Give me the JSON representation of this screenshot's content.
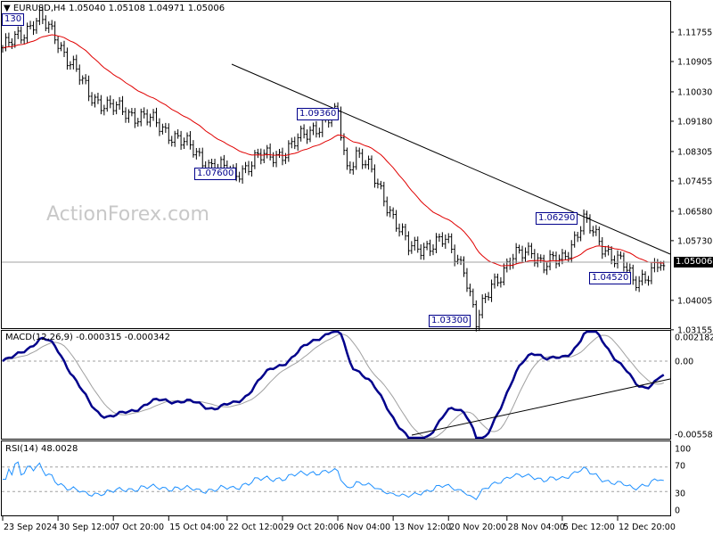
{
  "header": {
    "symbol": "EURUSD,H4",
    "open": "1.05040",
    "high": "1.05108",
    "low": "1.04971",
    "close": "1.05006"
  },
  "watermark": "ActionForex.com",
  "current_price": "1.05006",
  "annotations": {
    "top_left": "130",
    "high1": "1.09360",
    "low1": "1.07600",
    "high2": "1.06290",
    "low2": "1.04520",
    "low3": "1.03300"
  },
  "macd": {
    "label": "MACD(12,26,9) -0.000315 -0.000342",
    "axis": [
      "0.002182",
      "0.00",
      "-0.005584"
    ]
  },
  "rsi": {
    "label": "RSI(14) 48.0028",
    "axis": [
      "100",
      "70",
      "30",
      "0"
    ]
  },
  "colors": {
    "bars": "#000000",
    "ma": "#e00000",
    "macd": "#00008b",
    "signal": "#a0a0a0",
    "rsi": "#1e90ff"
  },
  "chart_data": {
    "type": "line",
    "title": "EURUSD,H4",
    "price_axis": [
      "1.11755",
      "1.10905",
      "1.10030",
      "1.09180",
      "1.08305",
      "1.07455",
      "1.06580",
      "1.05730",
      "1.05006",
      "1.04005",
      "1.03155"
    ],
    "ylim": [
      1.0305,
      1.1265
    ],
    "x_ticks": [
      {
        "bar": 0,
        "label": "23 Sep 2024"
      },
      {
        "bar": 18,
        "label": "30 Sep 12:00"
      },
      {
        "bar": 36,
        "label": "7 Oct 20:00"
      },
      {
        "bar": 54,
        "label": "15 Oct 04:00"
      },
      {
        "bar": 73,
        "label": "22 Oct 12:00"
      },
      {
        "bar": 91,
        "label": "29 Oct 20:00"
      },
      {
        "bar": 109,
        "label": "6 Nov 04:00"
      },
      {
        "bar": 127,
        "label": "13 Nov 12:00"
      },
      {
        "bar": 145,
        "label": "20 Nov 20:00"
      },
      {
        "bar": 164,
        "label": "28 Nov 04:00"
      },
      {
        "bar": 182,
        "label": "5 Dec 12:00"
      },
      {
        "bar": 200,
        "label": "12 Dec 20:00"
      }
    ],
    "price_path": [
      [
        0,
        1.112
      ],
      [
        5,
        1.117
      ],
      [
        12,
        1.121
      ],
      [
        17,
        1.117
      ],
      [
        21,
        1.11
      ],
      [
        28,
        1.1
      ],
      [
        34,
        1.096
      ],
      [
        46,
        1.093
      ],
      [
        57,
        1.087
      ],
      [
        66,
        1.08
      ],
      [
        75,
        1.0765
      ],
      [
        83,
        1.081
      ],
      [
        92,
        1.083
      ],
      [
        101,
        1.09
      ],
      [
        109,
        1.0936
      ],
      [
        112,
        1.078
      ],
      [
        115,
        1.083
      ],
      [
        119,
        1.078
      ],
      [
        124,
        1.07
      ],
      [
        132,
        1.055
      ],
      [
        144,
        1.057
      ],
      [
        150,
        1.05
      ],
      [
        154,
        1.033
      ],
      [
        159,
        1.045
      ],
      [
        166,
        1.052
      ],
      [
        172,
        1.055
      ],
      [
        176,
        1.05
      ],
      [
        182,
        1.052
      ],
      [
        189,
        1.0629
      ],
      [
        195,
        1.056
      ],
      [
        202,
        1.05
      ],
      [
        205,
        1.0452
      ],
      [
        213,
        1.05
      ]
    ],
    "series": [
      {
        "name": "EURUSD"
      },
      {
        "name": "MA"
      },
      {
        "name": "MACD"
      },
      {
        "name": "Signal"
      },
      {
        "name": "RSI(14)"
      }
    ]
  }
}
